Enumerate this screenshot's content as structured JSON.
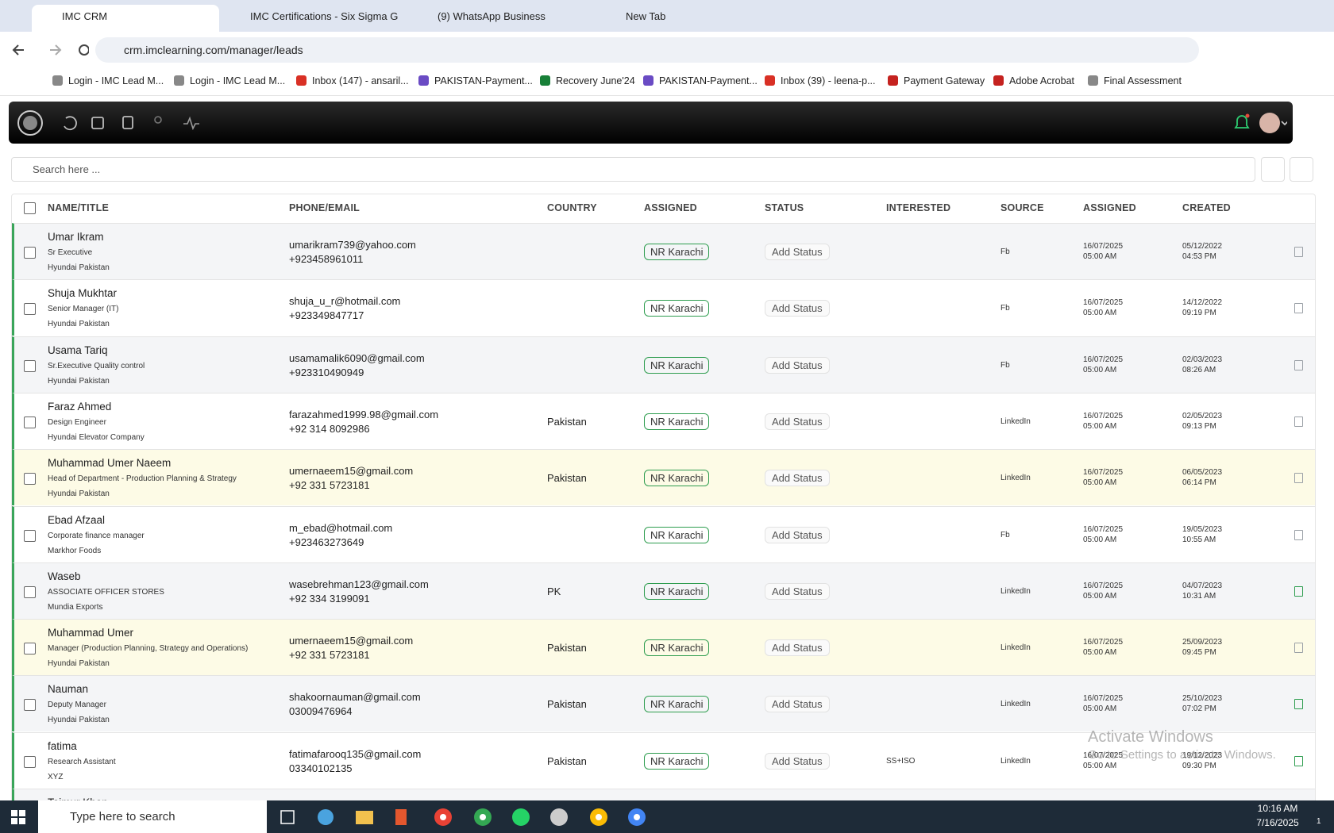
{
  "browser": {
    "tabs": [
      "IMC CRM",
      "IMC Certifications - Six Sigma G",
      "(9) WhatsApp Business",
      "New Tab"
    ],
    "url": "crm.imclearning.com/manager/leads",
    "bookmarks": [
      "Login - IMC Lead M...",
      "Login - IMC Lead M...",
      "Inbox (147) - ansaril...",
      "PAKISTAN-Payment...",
      "Recovery June'24",
      "PAKISTAN-Payment...",
      "Inbox (39) - leena-p...",
      "Payment Gateway",
      "Adobe Acrobat",
      "Final Assessment"
    ]
  },
  "search": {
    "placeholder": "Search here ..."
  },
  "table": {
    "headers": [
      "NAME/TITLE",
      "PHONE/EMAIL",
      "COUNTRY",
      "ASSIGNED",
      "STATUS",
      "INTERESTED",
      "SOURCE",
      "ASSIGNED",
      "CREATED"
    ],
    "rows": [
      {
        "name": "Umar Ikram",
        "title": "Sr Executive",
        "company": "Hyundai Pakistan",
        "email": "umarikram739@yahoo.com",
        "phone": "+923458961011",
        "country": "",
        "assigned": "NR Karachi",
        "status": "Add Status",
        "interested": "",
        "source": "Fb",
        "assigned_date": "16/07/2025",
        "assigned_time": "05:00 AM",
        "created_date": "05/12/2022",
        "created_time": "04:53 PM",
        "background": "#f4f5f7",
        "icon_color": "#9aa0a6"
      },
      {
        "name": "Shuja Mukhtar",
        "title": "Senior Manager (IT)",
        "company": "Hyundai Pakistan",
        "email": "shuja_u_r@hotmail.com",
        "phone": "+923349847717",
        "country": "",
        "assigned": "NR Karachi",
        "status": "Add Status",
        "interested": "",
        "source": "Fb",
        "assigned_date": "16/07/2025",
        "assigned_time": "05:00 AM",
        "created_date": "14/12/2022",
        "created_time": "09:19 PM",
        "background": "#ffffff",
        "icon_color": "#9aa0a6"
      },
      {
        "name": "Usama Tariq",
        "title": "Sr.Executive Quality control",
        "company": "Hyundai Pakistan",
        "email": "usamamalik6090@gmail.com",
        "phone": "+923310490949",
        "country": "",
        "assigned": "NR Karachi",
        "status": "Add Status",
        "interested": "",
        "source": "Fb",
        "assigned_date": "16/07/2025",
        "assigned_time": "05:00 AM",
        "created_date": "02/03/2023",
        "created_time": "08:26 AM",
        "background": "#f4f5f7",
        "icon_color": "#9aa0a6"
      },
      {
        "name": "Faraz Ahmed",
        "title": "Design Engineer",
        "company": "Hyundai Elevator Company",
        "email": "farazahmed1999.98@gmail.com",
        "phone": "+92 314 8092986",
        "country": "Pakistan",
        "assigned": "NR Karachi",
        "status": "Add Status",
        "interested": "",
        "source": "LinkedIn",
        "assigned_date": "16/07/2025",
        "assigned_time": "05:00 AM",
        "created_date": "02/05/2023",
        "created_time": "09:13 PM",
        "background": "#ffffff",
        "icon_color": "#9aa0a6"
      },
      {
        "name": "Muhammad Umer Naeem",
        "title": "Head of Department - Production Planning & Strategy",
        "company": "Hyundai Pakistan",
        "email": "umernaeem15@gmail.com",
        "phone": "+92 331 5723181",
        "country": "Pakistan",
        "assigned": "NR Karachi",
        "status": "Add Status",
        "interested": "",
        "source": "LinkedIn",
        "assigned_date": "16/07/2025",
        "assigned_time": "05:00 AM",
        "created_date": "06/05/2023",
        "created_time": "06:14 PM",
        "background": "#fdfbe6",
        "icon_color": "#9aa0a6"
      },
      {
        "name": "Ebad Afzaal",
        "title": "Corporate finance manager",
        "company": "Markhor Foods",
        "email": "m_ebad@hotmail.com",
        "phone": "+923463273649",
        "country": "",
        "assigned": "NR Karachi",
        "status": "Add Status",
        "interested": "",
        "source": "Fb",
        "assigned_date": "16/07/2025",
        "assigned_time": "05:00 AM",
        "created_date": "19/05/2023",
        "created_time": "10:55 AM",
        "background": "#ffffff",
        "icon_color": "#9aa0a6"
      },
      {
        "name": "Waseb",
        "title": "ASSOCIATE OFFICER STORES",
        "company": "Mundia Exports",
        "email": "wasebrehman123@gmail.com",
        "phone": "+92 334 3199091",
        "country": "PK",
        "assigned": "NR Karachi",
        "status": "Add Status",
        "interested": "",
        "source": "LinkedIn",
        "assigned_date": "16/07/2025",
        "assigned_time": "05:00 AM",
        "created_date": "04/07/2023",
        "created_time": "10:31 AM",
        "background": "#f4f5f7",
        "icon_color": "#2e9d4f"
      },
      {
        "name": "Muhammad Umer",
        "title": "Manager (Production Planning, Strategy and Operations)",
        "company": "Hyundai Pakistan",
        "email": "umernaeem15@gmail.com",
        "phone": "+92 331 5723181",
        "country": "Pakistan",
        "assigned": "NR Karachi",
        "status": "Add Status",
        "interested": "",
        "source": "LinkedIn",
        "assigned_date": "16/07/2025",
        "assigned_time": "05:00 AM",
        "created_date": "25/09/2023",
        "created_time": "09:45 PM",
        "background": "#fdfbe6",
        "icon_color": "#9aa0a6"
      },
      {
        "name": "Nauman",
        "title": "Deputy Manager",
        "company": "Hyundai Pakistan",
        "email": "shakoornauman@gmail.com",
        "phone": "03009476964",
        "country": "Pakistan",
        "assigned": "NR Karachi",
        "status": "Add Status",
        "interested": "",
        "source": "LinkedIn",
        "assigned_date": "16/07/2025",
        "assigned_time": "05:00 AM",
        "created_date": "25/10/2023",
        "created_time": "07:02 PM",
        "background": "#f4f5f7",
        "icon_color": "#2e9d4f"
      },
      {
        "name": "fatima",
        "title": "Research Assistant",
        "company": "XYZ",
        "email": "fatimafarooq135@gmail.com",
        "phone": "03340102135",
        "country": "Pakistan",
        "assigned": "NR Karachi",
        "status": "Add Status",
        "interested": "SS+ISO",
        "source": "LinkedIn",
        "assigned_date": "16/07/2025",
        "assigned_time": "05:00 AM",
        "created_date": "19/12/2023",
        "created_time": "09:30 PM",
        "background": "#ffffff",
        "icon_color": "#2e9d4f"
      },
      {
        "name": "Taimur Khan",
        "background": "#f4f5f7"
      }
    ]
  },
  "watermark": {
    "title": "Activate Windows",
    "subtitle": "Go to Settings to activate Windows."
  },
  "taskbar": {
    "search": "Type here to search",
    "time": "10:16 AM",
    "date": "7/16/2025",
    "badge": "1"
  }
}
